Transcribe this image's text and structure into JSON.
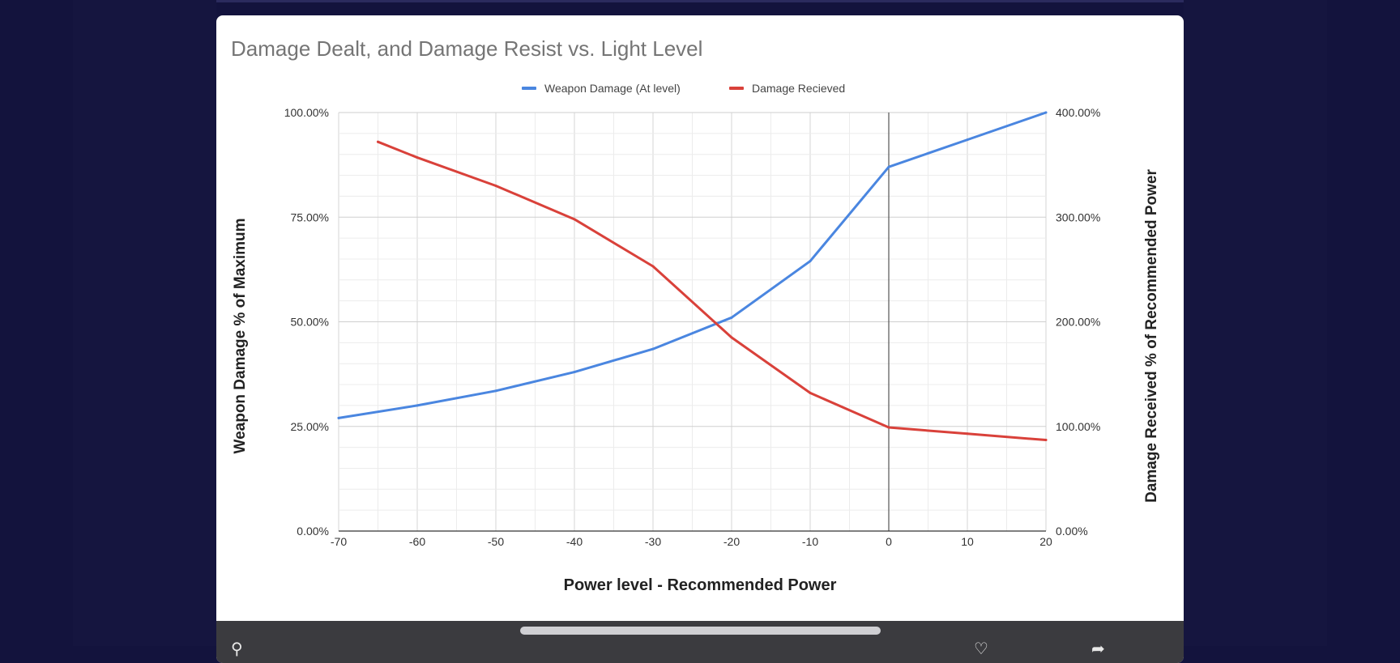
{
  "chart_data": {
    "type": "line",
    "title": "Damage Dealt, and Damage Resist vs. Light Level",
    "xlabel": "Power level - Recommended Power",
    "ylabel": "Weapon Damage % of Maximum",
    "y2label": "Damage Received % of Recommended Power",
    "xlim": [
      -70,
      20
    ],
    "ylim": [
      0,
      100
    ],
    "y2lim": [
      0,
      400
    ],
    "x_ticks": [
      "-70",
      "-60",
      "-50",
      "-40",
      "-30",
      "-20",
      "-10",
      "0",
      "10",
      "20"
    ],
    "y_ticks": [
      "0.00%",
      "25.00%",
      "50.00%",
      "75.00%",
      "100.00%"
    ],
    "y2_ticks": [
      "0.00%",
      "100.00%",
      "200.00%",
      "300.00%",
      "400.00%"
    ],
    "legend_position": "top",
    "grid": true,
    "series": [
      {
        "name": "Weapon Damage (At level)",
        "axis": "left",
        "color": "#4a86e0",
        "x": [
          -70,
          -60,
          -50,
          -40,
          -30,
          -20,
          -10,
          0,
          10,
          20
        ],
        "values": [
          27,
          30,
          33.5,
          38,
          43.5,
          51,
          64.5,
          87,
          93.5,
          100
        ]
      },
      {
        "name": "Damage Recieved",
        "axis": "right",
        "color": "#d9413a",
        "x": [
          -65,
          -60,
          -50,
          -40,
          -30,
          -20,
          -10,
          0,
          10,
          20
        ],
        "values": [
          372,
          357,
          330,
          298,
          253,
          185,
          132,
          99,
          93,
          87
        ]
      }
    ]
  },
  "colors": {
    "background": "#13133d",
    "card": "#ffffff",
    "bottom_bar": "#3b3b3f"
  },
  "bottom_bar": {
    "left_icon": "search-icon",
    "right_icons": [
      "heart-icon",
      "share-icon"
    ]
  }
}
